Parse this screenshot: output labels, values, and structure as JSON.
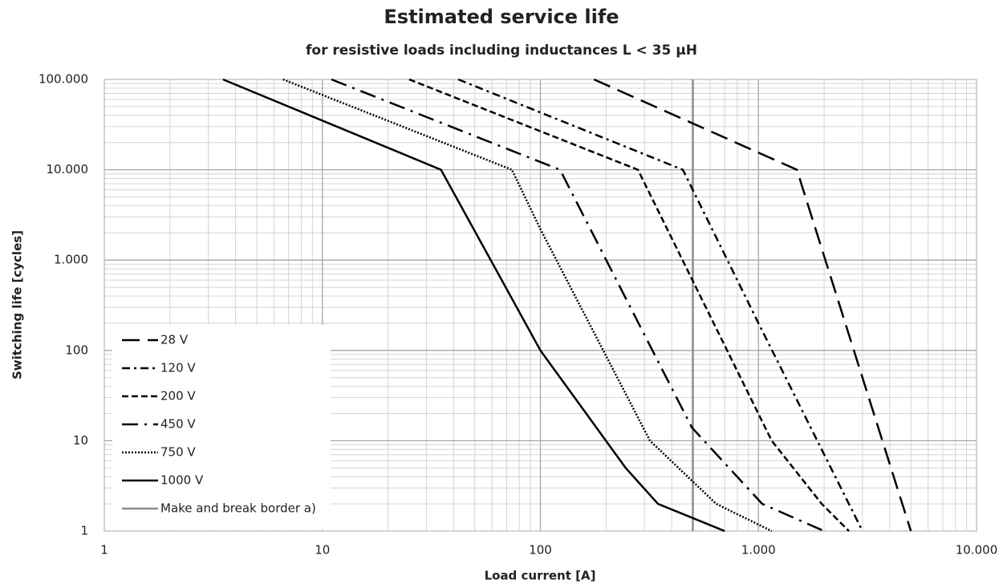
{
  "chart_data": {
    "type": "line",
    "title": "Estimated service life",
    "subtitle": "for resistive loads including inductances L < 35 µH",
    "x_label": "Load current [A]",
    "y_label": "Switching life  [cycles]",
    "log_x": true,
    "log_y": true,
    "grid": true,
    "minor_grid": true,
    "legend_position": "lower left",
    "xlim": [
      1,
      10000
    ],
    "xticks": [
      1,
      10,
      100,
      {
        "value": 1000,
        "label": "1.000"
      },
      {
        "value": 10000,
        "label": "10.000"
      }
    ],
    "ylim": [
      1,
      100000
    ],
    "yticks": [
      1,
      10,
      100,
      {
        "value": 1000,
        "label": "1.000"
      },
      {
        "value": 10000,
        "label": "10.000"
      },
      {
        "value": 100000,
        "label": "100.000"
      }
    ],
    "series": [
      {
        "name": "28 V",
        "color": "#000000",
        "dash": "22,10",
        "x": [
          176,
          1500,
          5000
        ],
        "values": [
          100000,
          10000,
          1
        ]
      },
      {
        "name": "120 V",
        "color": "#000000",
        "dash": "10,5,3,5",
        "x": [
          42,
          450,
          1000,
          3000
        ],
        "values": [
          100000,
          10000,
          200,
          1
        ]
      },
      {
        "name": "200 V",
        "color": "#000000",
        "dash": "8,4",
        "x": [
          25,
          280,
          1150,
          1950,
          2600
        ],
        "values": [
          100000,
          10000,
          10,
          2,
          1
        ]
      },
      {
        "name": "450 V",
        "color": "#000000",
        "dash": "20,8,3,8",
        "x": [
          11,
          123,
          495,
          1040,
          2000
        ],
        "values": [
          100000,
          10000,
          14,
          2,
          1
        ]
      },
      {
        "name": "750 V",
        "color": "#000000",
        "dash": "2,2",
        "x": [
          6.6,
          74,
          100,
          318,
          640,
          1150
        ],
        "values": [
          100000,
          10000,
          2200,
          10,
          2,
          1
        ]
      },
      {
        "name": "1000 V",
        "color": "#000000",
        "dash": "",
        "x": [
          3.5,
          35,
          100,
          246,
          346,
          700
        ],
        "values": [
          100000,
          10000,
          100,
          5,
          2,
          1
        ]
      }
    ],
    "vlines": [
      {
        "name": "Make and break border a)",
        "x": 500,
        "color": "#8c8c8c"
      }
    ]
  }
}
